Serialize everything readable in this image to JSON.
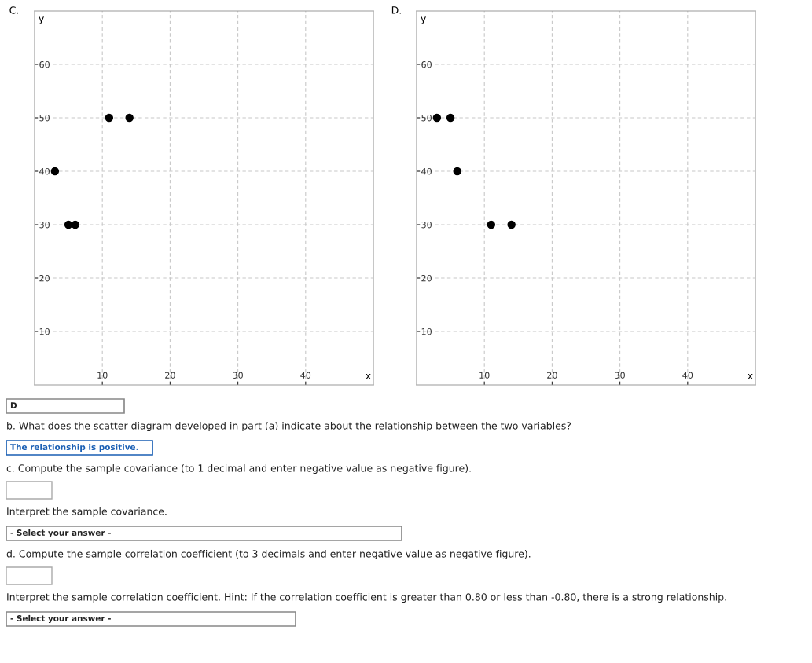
{
  "chart_data": [
    {
      "type": "scatter",
      "title": "C.",
      "xlabel": "x",
      "ylabel": "y",
      "xlim": [
        0,
        50
      ],
      "ylim": [
        0,
        70
      ],
      "xticks": [
        10,
        20,
        30,
        40
      ],
      "yticks": [
        10,
        20,
        30,
        40,
        50,
        60
      ],
      "grid": true,
      "marker": "circle",
      "series": [
        {
          "color": "#000000",
          "x": [
            3,
            5,
            6,
            11,
            14
          ],
          "values": [
            40,
            30,
            30,
            50,
            50
          ]
        }
      ]
    },
    {
      "type": "scatter",
      "title": "D.",
      "xlabel": "x",
      "ylabel": "y",
      "xlim": [
        0,
        50
      ],
      "ylim": [
        0,
        70
      ],
      "xticks": [
        10,
        20,
        30,
        40
      ],
      "yticks": [
        10,
        20,
        30,
        40,
        50,
        60
      ],
      "grid": true,
      "marker": "circle",
      "series": [
        {
          "color": "#000000",
          "x": [
            3,
            5,
            6,
            11,
            14
          ],
          "values": [
            50,
            50,
            40,
            30,
            30
          ]
        }
      ]
    },
    {
      "type": "other",
      "annotations": [
        "D",
        "b. What does the scatter diagram developed in part (a) indicate about the relationship between the two variables?",
        "The relationship is positive.",
        "c. Compute the sample covariance (to 1 decimal and enter negative value as negative figure).",
        "Interpret the sample covariance.",
        "- Select your answer -",
        "d. Compute the sample correlation coefficient (to 3 decimals and enter negative value as negative figure).",
        "Interpret the sample correlation coefficient. Hint: If the correlation coefficient is greater than 0.80 or less than -0.80, there is a strong relationship.",
        "- Select your answer -"
      ]
    }
  ]
}
